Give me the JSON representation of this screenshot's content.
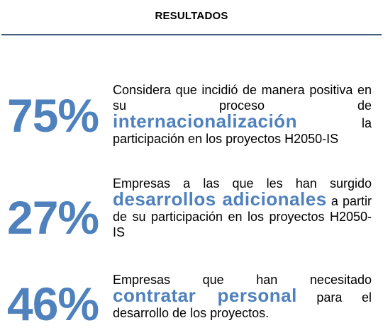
{
  "header": {
    "title": "RESULTADOS"
  },
  "colors": {
    "accent": "#4f81bd",
    "divider": "#3f5f7f",
    "text": "#000000"
  },
  "stats": [
    {
      "value": "75%",
      "text_before": "Considera que incidió de manera positiva en su proceso de ",
      "highlight": "internacionalización",
      "text_after": " la participación en los proyectos H2050-IS"
    },
    {
      "value": "27%",
      "text_before": "Empresas a las que les han surgido ",
      "highlight": "desarrollos adicionales",
      "text_after": " a partir de su participación en los proyectos H2050-IS"
    },
    {
      "value": "46%",
      "text_before": "Empresas que han necesitado ",
      "highlight": "contratar personal",
      "text_after": " para el desarrollo de los proyectos."
    }
  ]
}
